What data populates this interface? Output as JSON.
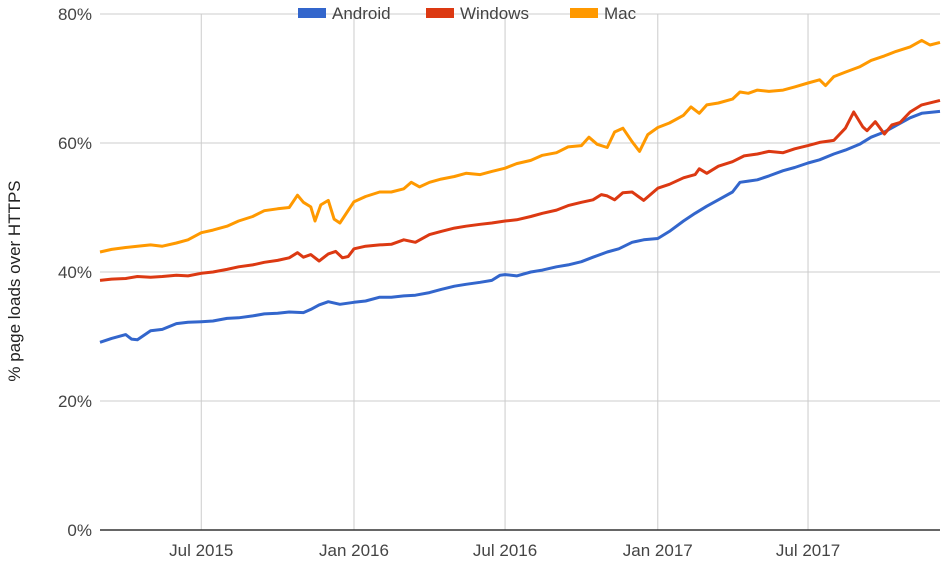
{
  "chart_data": {
    "type": "line",
    "title": "",
    "xlabel": "",
    "ylabel": "% page loads over HTTPS",
    "ylim": [
      0,
      80
    ],
    "y_ticks": [
      {
        "value": 0,
        "label": "0%"
      },
      {
        "value": 20,
        "label": "20%"
      },
      {
        "value": 40,
        "label": "40%"
      },
      {
        "value": 60,
        "label": "60%"
      },
      {
        "value": 80,
        "label": "80%"
      }
    ],
    "x_range": [
      "2015-03-01",
      "2017-12-07"
    ],
    "x_ticks": [
      {
        "date": "2015-07-01",
        "label": "Jul 2015"
      },
      {
        "date": "2016-01-01",
        "label": "Jan 2016"
      },
      {
        "date": "2016-07-01",
        "label": "Jul 2016"
      },
      {
        "date": "2017-01-01",
        "label": "Jan 2017"
      },
      {
        "date": "2017-07-01",
        "label": "Jul 2017"
      }
    ],
    "grid": true,
    "legend_position": "top",
    "series": [
      {
        "name": "Android",
        "color": "#3366cc",
        "points": [
          [
            "2015-03-01",
            29.1
          ],
          [
            "2015-03-15",
            29.7
          ],
          [
            "2015-04-01",
            30.3
          ],
          [
            "2015-04-08",
            29.6
          ],
          [
            "2015-04-15",
            29.5
          ],
          [
            "2015-05-01",
            30.9
          ],
          [
            "2015-05-15",
            31.1
          ],
          [
            "2015-06-01",
            32.0
          ],
          [
            "2015-06-15",
            32.2
          ],
          [
            "2015-07-01",
            32.3
          ],
          [
            "2015-07-15",
            32.4
          ],
          [
            "2015-08-01",
            32.8
          ],
          [
            "2015-08-15",
            32.9
          ],
          [
            "2015-09-01",
            33.2
          ],
          [
            "2015-09-15",
            33.5
          ],
          [
            "2015-10-01",
            33.6
          ],
          [
            "2015-10-15",
            33.8
          ],
          [
            "2015-11-01",
            33.7
          ],
          [
            "2015-11-10",
            34.2
          ],
          [
            "2015-11-20",
            34.9
          ],
          [
            "2015-12-01",
            35.4
          ],
          [
            "2015-12-15",
            35.0
          ],
          [
            "2016-01-01",
            35.3
          ],
          [
            "2016-01-15",
            35.5
          ],
          [
            "2016-02-01",
            36.1
          ],
          [
            "2016-02-15",
            36.1
          ],
          [
            "2016-03-01",
            36.3
          ],
          [
            "2016-03-15",
            36.4
          ],
          [
            "2016-04-01",
            36.8
          ],
          [
            "2016-04-15",
            37.3
          ],
          [
            "2016-05-01",
            37.8
          ],
          [
            "2016-05-15",
            38.1
          ],
          [
            "2016-06-01",
            38.4
          ],
          [
            "2016-06-15",
            38.7
          ],
          [
            "2016-06-25",
            39.5
          ],
          [
            "2016-07-01",
            39.6
          ],
          [
            "2016-07-15",
            39.4
          ],
          [
            "2016-08-01",
            40.0
          ],
          [
            "2016-08-15",
            40.3
          ],
          [
            "2016-09-01",
            40.8
          ],
          [
            "2016-09-15",
            41.1
          ],
          [
            "2016-10-01",
            41.6
          ],
          [
            "2016-10-15",
            42.3
          ],
          [
            "2016-11-01",
            43.1
          ],
          [
            "2016-11-15",
            43.6
          ],
          [
            "2016-12-01",
            44.6
          ],
          [
            "2016-12-15",
            45.0
          ],
          [
            "2017-01-01",
            45.2
          ],
          [
            "2017-01-15",
            46.3
          ],
          [
            "2017-02-01",
            47.9
          ],
          [
            "2017-02-15",
            49.1
          ],
          [
            "2017-03-01",
            50.2
          ],
          [
            "2017-03-15",
            51.2
          ],
          [
            "2017-04-01",
            52.4
          ],
          [
            "2017-04-10",
            53.9
          ],
          [
            "2017-04-20",
            54.1
          ],
          [
            "2017-05-01",
            54.3
          ],
          [
            "2017-05-15",
            54.9
          ],
          [
            "2017-06-01",
            55.7
          ],
          [
            "2017-06-15",
            56.2
          ],
          [
            "2017-07-01",
            56.9
          ],
          [
            "2017-07-15",
            57.4
          ],
          [
            "2017-08-01",
            58.3
          ],
          [
            "2017-08-15",
            58.9
          ],
          [
            "2017-09-01",
            59.8
          ],
          [
            "2017-09-15",
            60.9
          ],
          [
            "2017-10-01",
            61.7
          ],
          [
            "2017-10-15",
            62.7
          ],
          [
            "2017-11-01",
            63.9
          ],
          [
            "2017-11-15",
            64.6
          ],
          [
            "2017-12-07",
            64.9
          ]
        ]
      },
      {
        "name": "Windows",
        "color": "#dc3912",
        "points": [
          [
            "2015-03-01",
            38.7
          ],
          [
            "2015-03-15",
            38.9
          ],
          [
            "2015-04-01",
            39.0
          ],
          [
            "2015-04-15",
            39.3
          ],
          [
            "2015-05-01",
            39.2
          ],
          [
            "2015-05-15",
            39.3
          ],
          [
            "2015-06-01",
            39.5
          ],
          [
            "2015-06-15",
            39.4
          ],
          [
            "2015-07-01",
            39.8
          ],
          [
            "2015-07-15",
            40.0
          ],
          [
            "2015-08-01",
            40.4
          ],
          [
            "2015-08-15",
            40.8
          ],
          [
            "2015-09-01",
            41.1
          ],
          [
            "2015-09-15",
            41.5
          ],
          [
            "2015-10-01",
            41.8
          ],
          [
            "2015-10-15",
            42.2
          ],
          [
            "2015-10-25",
            43.0
          ],
          [
            "2015-11-01",
            42.3
          ],
          [
            "2015-11-10",
            42.7
          ],
          [
            "2015-11-20",
            41.7
          ],
          [
            "2015-12-01",
            42.8
          ],
          [
            "2015-12-10",
            43.2
          ],
          [
            "2015-12-18",
            42.2
          ],
          [
            "2015-12-25",
            42.4
          ],
          [
            "2016-01-01",
            43.6
          ],
          [
            "2016-01-15",
            44.0
          ],
          [
            "2016-02-01",
            44.2
          ],
          [
            "2016-02-15",
            44.3
          ],
          [
            "2016-03-01",
            45.0
          ],
          [
            "2016-03-15",
            44.6
          ],
          [
            "2016-04-01",
            45.8
          ],
          [
            "2016-04-15",
            46.3
          ],
          [
            "2016-05-01",
            46.8
          ],
          [
            "2016-05-15",
            47.1
          ],
          [
            "2016-06-01",
            47.4
          ],
          [
            "2016-06-15",
            47.6
          ],
          [
            "2016-07-01",
            47.9
          ],
          [
            "2016-07-15",
            48.1
          ],
          [
            "2016-08-01",
            48.6
          ],
          [
            "2016-08-15",
            49.1
          ],
          [
            "2016-09-01",
            49.6
          ],
          [
            "2016-09-15",
            50.3
          ],
          [
            "2016-10-01",
            50.8
          ],
          [
            "2016-10-15",
            51.2
          ],
          [
            "2016-10-25",
            52.0
          ],
          [
            "2016-11-01",
            51.8
          ],
          [
            "2016-11-10",
            51.2
          ],
          [
            "2016-11-20",
            52.3
          ],
          [
            "2016-12-01",
            52.4
          ],
          [
            "2016-12-15",
            51.1
          ],
          [
            "2017-01-01",
            53.0
          ],
          [
            "2017-01-15",
            53.6
          ],
          [
            "2017-02-01",
            54.6
          ],
          [
            "2017-02-15",
            55.1
          ],
          [
            "2017-02-20",
            56.0
          ],
          [
            "2017-03-01",
            55.3
          ],
          [
            "2017-03-15",
            56.4
          ],
          [
            "2017-04-01",
            57.1
          ],
          [
            "2017-04-15",
            58.0
          ],
          [
            "2017-05-01",
            58.3
          ],
          [
            "2017-05-15",
            58.7
          ],
          [
            "2017-06-01",
            58.5
          ],
          [
            "2017-06-15",
            59.1
          ],
          [
            "2017-07-01",
            59.6
          ],
          [
            "2017-07-15",
            60.1
          ],
          [
            "2017-08-01",
            60.4
          ],
          [
            "2017-08-15",
            62.3
          ],
          [
            "2017-08-25",
            64.8
          ],
          [
            "2017-09-05",
            62.5
          ],
          [
            "2017-09-10",
            61.9
          ],
          [
            "2017-09-20",
            63.3
          ],
          [
            "2017-10-01",
            61.4
          ],
          [
            "2017-10-10",
            62.8
          ],
          [
            "2017-10-20",
            63.2
          ],
          [
            "2017-11-01",
            64.8
          ],
          [
            "2017-11-15",
            65.9
          ],
          [
            "2017-12-07",
            66.6
          ]
        ]
      },
      {
        "name": "Mac",
        "color": "#ff9900",
        "points": [
          [
            "2015-03-01",
            43.1
          ],
          [
            "2015-03-15",
            43.5
          ],
          [
            "2015-04-01",
            43.8
          ],
          [
            "2015-04-15",
            44.0
          ],
          [
            "2015-05-01",
            44.2
          ],
          [
            "2015-05-15",
            44.0
          ],
          [
            "2015-06-01",
            44.5
          ],
          [
            "2015-06-15",
            45.0
          ],
          [
            "2015-07-01",
            46.1
          ],
          [
            "2015-07-15",
            46.5
          ],
          [
            "2015-08-01",
            47.1
          ],
          [
            "2015-08-15",
            47.9
          ],
          [
            "2015-09-01",
            48.6
          ],
          [
            "2015-09-15",
            49.5
          ],
          [
            "2015-10-01",
            49.8
          ],
          [
            "2015-10-15",
            50.0
          ],
          [
            "2015-10-25",
            51.9
          ],
          [
            "2015-11-01",
            50.8
          ],
          [
            "2015-11-10",
            50.1
          ],
          [
            "2015-11-15",
            47.9
          ],
          [
            "2015-11-22",
            50.4
          ],
          [
            "2015-12-01",
            51.1
          ],
          [
            "2015-12-08",
            48.2
          ],
          [
            "2015-12-15",
            47.6
          ],
          [
            "2016-01-01",
            50.9
          ],
          [
            "2016-01-15",
            51.7
          ],
          [
            "2016-02-01",
            52.4
          ],
          [
            "2016-02-15",
            52.4
          ],
          [
            "2016-03-01",
            52.9
          ],
          [
            "2016-03-10",
            53.9
          ],
          [
            "2016-03-20",
            53.2
          ],
          [
            "2016-04-01",
            53.9
          ],
          [
            "2016-04-15",
            54.4
          ],
          [
            "2016-05-01",
            54.8
          ],
          [
            "2016-05-15",
            55.3
          ],
          [
            "2016-06-01",
            55.1
          ],
          [
            "2016-06-15",
            55.6
          ],
          [
            "2016-07-01",
            56.1
          ],
          [
            "2016-07-15",
            56.8
          ],
          [
            "2016-08-01",
            57.3
          ],
          [
            "2016-08-15",
            58.1
          ],
          [
            "2016-09-01",
            58.5
          ],
          [
            "2016-09-15",
            59.4
          ],
          [
            "2016-10-01",
            59.6
          ],
          [
            "2016-10-10",
            60.9
          ],
          [
            "2016-10-20",
            59.8
          ],
          [
            "2016-11-01",
            59.3
          ],
          [
            "2016-11-10",
            61.7
          ],
          [
            "2016-11-20",
            62.3
          ],
          [
            "2016-12-01",
            60.2
          ],
          [
            "2016-12-10",
            58.7
          ],
          [
            "2016-12-20",
            61.3
          ],
          [
            "2017-01-01",
            62.4
          ],
          [
            "2017-01-15",
            63.1
          ],
          [
            "2017-02-01",
            64.3
          ],
          [
            "2017-02-10",
            65.6
          ],
          [
            "2017-02-20",
            64.6
          ],
          [
            "2017-03-01",
            65.9
          ],
          [
            "2017-03-15",
            66.2
          ],
          [
            "2017-04-01",
            66.8
          ],
          [
            "2017-04-10",
            67.9
          ],
          [
            "2017-04-20",
            67.7
          ],
          [
            "2017-05-01",
            68.2
          ],
          [
            "2017-05-15",
            68.0
          ],
          [
            "2017-06-01",
            68.2
          ],
          [
            "2017-06-15",
            68.7
          ],
          [
            "2017-07-01",
            69.3
          ],
          [
            "2017-07-15",
            69.8
          ],
          [
            "2017-07-22",
            68.9
          ],
          [
            "2017-08-01",
            70.3
          ],
          [
            "2017-08-15",
            71.0
          ],
          [
            "2017-09-01",
            71.8
          ],
          [
            "2017-09-15",
            72.8
          ],
          [
            "2017-10-01",
            73.5
          ],
          [
            "2017-10-15",
            74.2
          ],
          [
            "2017-11-01",
            74.9
          ],
          [
            "2017-11-15",
            75.9
          ],
          [
            "2017-11-25",
            75.2
          ],
          [
            "2017-12-07",
            75.6
          ]
        ]
      }
    ]
  }
}
